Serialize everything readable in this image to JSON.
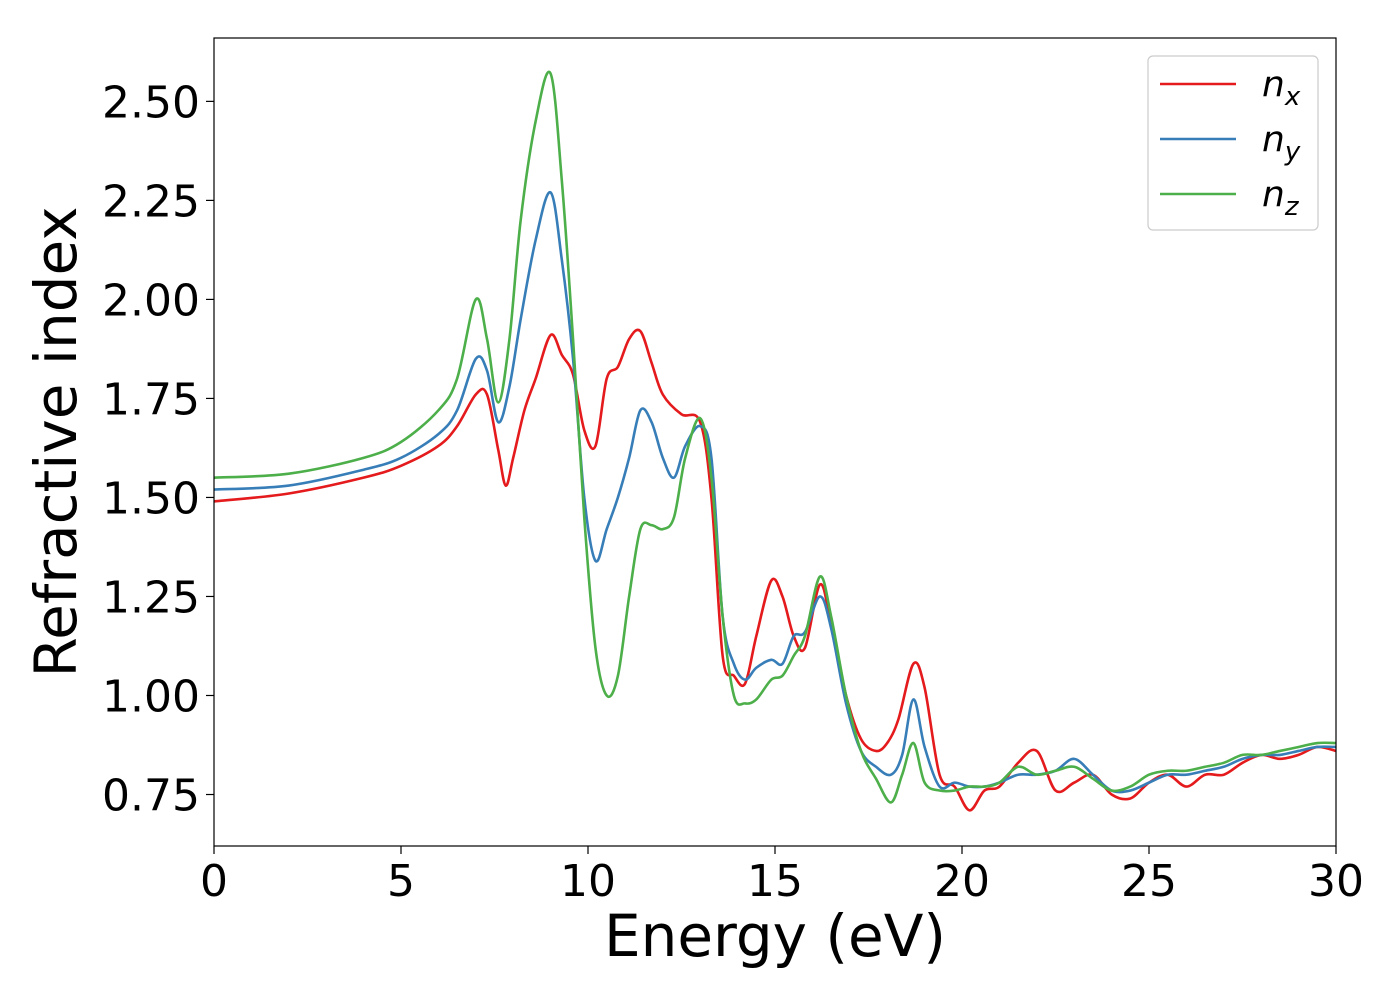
{
  "chart_data": {
    "type": "line",
    "title": "",
    "xlabel": "Energy (eV)",
    "ylabel": "Refractive index",
    "xlim": [
      0,
      30
    ],
    "ylim": [
      0.62,
      2.66
    ],
    "x_ticks": [
      "0",
      "5",
      "10",
      "15",
      "20",
      "25",
      "30"
    ],
    "y_ticks": [
      "0.75",
      "1.00",
      "1.25",
      "1.50",
      "1.75",
      "2.00",
      "2.25",
      "2.50"
    ],
    "grid": false,
    "legend_position": "top-right",
    "series": [
      {
        "name": "n",
        "sub": "x",
        "color": "#e41a1c",
        "x": [
          0,
          2,
          4,
          5,
          6,
          6.5,
          7,
          7.3,
          7.6,
          7.8,
          8,
          8.3,
          8.6,
          9,
          9.3,
          9.6,
          9.9,
          10.2,
          10.5,
          10.8,
          11.1,
          11.4,
          11.7,
          12,
          12.5,
          13,
          13.3,
          13.6,
          13.9,
          14.2,
          14.5,
          14.9,
          15.2,
          15.5,
          15.8,
          16.2,
          16.5,
          16.9,
          17.3,
          17.7,
          18,
          18.3,
          18.7,
          19,
          19.4,
          19.8,
          20.2,
          20.6,
          21,
          21.5,
          22,
          22.5,
          23,
          23.5,
          24,
          24.5,
          25,
          25.5,
          26,
          26.5,
          27,
          27.5,
          28,
          28.5,
          29,
          29.5,
          30
        ],
        "y": [
          1.49,
          1.51,
          1.55,
          1.58,
          1.63,
          1.68,
          1.76,
          1.76,
          1.62,
          1.53,
          1.6,
          1.72,
          1.8,
          1.91,
          1.86,
          1.81,
          1.67,
          1.63,
          1.8,
          1.83,
          1.9,
          1.92,
          1.84,
          1.76,
          1.71,
          1.69,
          1.5,
          1.1,
          1.05,
          1.03,
          1.15,
          1.29,
          1.25,
          1.15,
          1.12,
          1.28,
          1.18,
          1.0,
          0.89,
          0.86,
          0.88,
          0.94,
          1.08,
          1.02,
          0.8,
          0.77,
          0.71,
          0.76,
          0.77,
          0.83,
          0.86,
          0.76,
          0.78,
          0.8,
          0.75,
          0.74,
          0.78,
          0.8,
          0.77,
          0.8,
          0.8,
          0.83,
          0.85,
          0.84,
          0.85,
          0.87,
          0.86
        ]
      },
      {
        "name": "n",
        "sub": "y",
        "color": "#377eb8",
        "x": [
          0,
          2,
          4,
          5,
          6,
          6.5,
          7,
          7.3,
          7.6,
          7.9,
          8.2,
          8.6,
          9,
          9.3,
          9.6,
          9.9,
          10.2,
          10.5,
          10.8,
          11.1,
          11.4,
          11.7,
          12,
          12.3,
          12.6,
          13,
          13.3,
          13.6,
          13.9,
          14.2,
          14.5,
          14.9,
          15.2,
          15.5,
          15.8,
          16.2,
          16.5,
          16.9,
          17.3,
          17.7,
          18.1,
          18.4,
          18.7,
          19,
          19.4,
          19.8,
          20.2,
          20.6,
          21,
          21.5,
          22,
          22.5,
          23,
          23.5,
          24,
          24.5,
          25,
          25.5,
          26,
          26.5,
          27,
          27.5,
          28,
          28.5,
          29,
          29.5,
          30
        ],
        "y": [
          1.52,
          1.53,
          1.57,
          1.6,
          1.66,
          1.72,
          1.85,
          1.82,
          1.69,
          1.78,
          1.95,
          2.15,
          2.27,
          2.1,
          1.85,
          1.5,
          1.34,
          1.42,
          1.5,
          1.6,
          1.72,
          1.69,
          1.6,
          1.55,
          1.63,
          1.68,
          1.6,
          1.2,
          1.08,
          1.04,
          1.07,
          1.09,
          1.08,
          1.15,
          1.16,
          1.25,
          1.17,
          0.98,
          0.86,
          0.82,
          0.8,
          0.85,
          0.99,
          0.87,
          0.77,
          0.78,
          0.77,
          0.77,
          0.78,
          0.8,
          0.8,
          0.81,
          0.84,
          0.8,
          0.76,
          0.76,
          0.78,
          0.8,
          0.8,
          0.81,
          0.82,
          0.84,
          0.85,
          0.85,
          0.86,
          0.87,
          0.87
        ]
      },
      {
        "name": "n",
        "sub": "z",
        "color": "#4daf4a",
        "x": [
          0,
          2,
          4,
          5,
          6,
          6.5,
          7,
          7.3,
          7.6,
          7.9,
          8.2,
          8.6,
          9,
          9.3,
          9.6,
          9.9,
          10.2,
          10.5,
          10.8,
          11.1,
          11.4,
          11.7,
          12,
          12.3,
          12.6,
          13,
          13.3,
          13.6,
          13.9,
          14.2,
          14.5,
          14.9,
          15.2,
          15.5,
          15.8,
          16.2,
          16.5,
          16.9,
          17.3,
          17.7,
          18.1,
          18.4,
          18.7,
          19,
          19.4,
          19.8,
          20.2,
          20.6,
          21,
          21.5,
          22,
          22.5,
          23,
          23.5,
          24,
          24.5,
          25,
          25.5,
          26,
          26.5,
          27,
          27.5,
          28,
          28.5,
          29,
          29.5,
          30
        ],
        "y": [
          1.55,
          1.56,
          1.6,
          1.64,
          1.72,
          1.8,
          2.0,
          1.9,
          1.74,
          1.9,
          2.2,
          2.45,
          2.57,
          2.3,
          1.9,
          1.45,
          1.12,
          1.0,
          1.05,
          1.25,
          1.42,
          1.43,
          1.42,
          1.45,
          1.6,
          1.7,
          1.55,
          1.2,
          1.0,
          0.98,
          0.99,
          1.04,
          1.05,
          1.1,
          1.15,
          1.3,
          1.2,
          1.0,
          0.86,
          0.79,
          0.73,
          0.8,
          0.88,
          0.78,
          0.76,
          0.76,
          0.77,
          0.77,
          0.78,
          0.82,
          0.8,
          0.81,
          0.82,
          0.79,
          0.76,
          0.77,
          0.8,
          0.81,
          0.81,
          0.82,
          0.83,
          0.85,
          0.85,
          0.86,
          0.87,
          0.88,
          0.88
        ]
      }
    ]
  }
}
